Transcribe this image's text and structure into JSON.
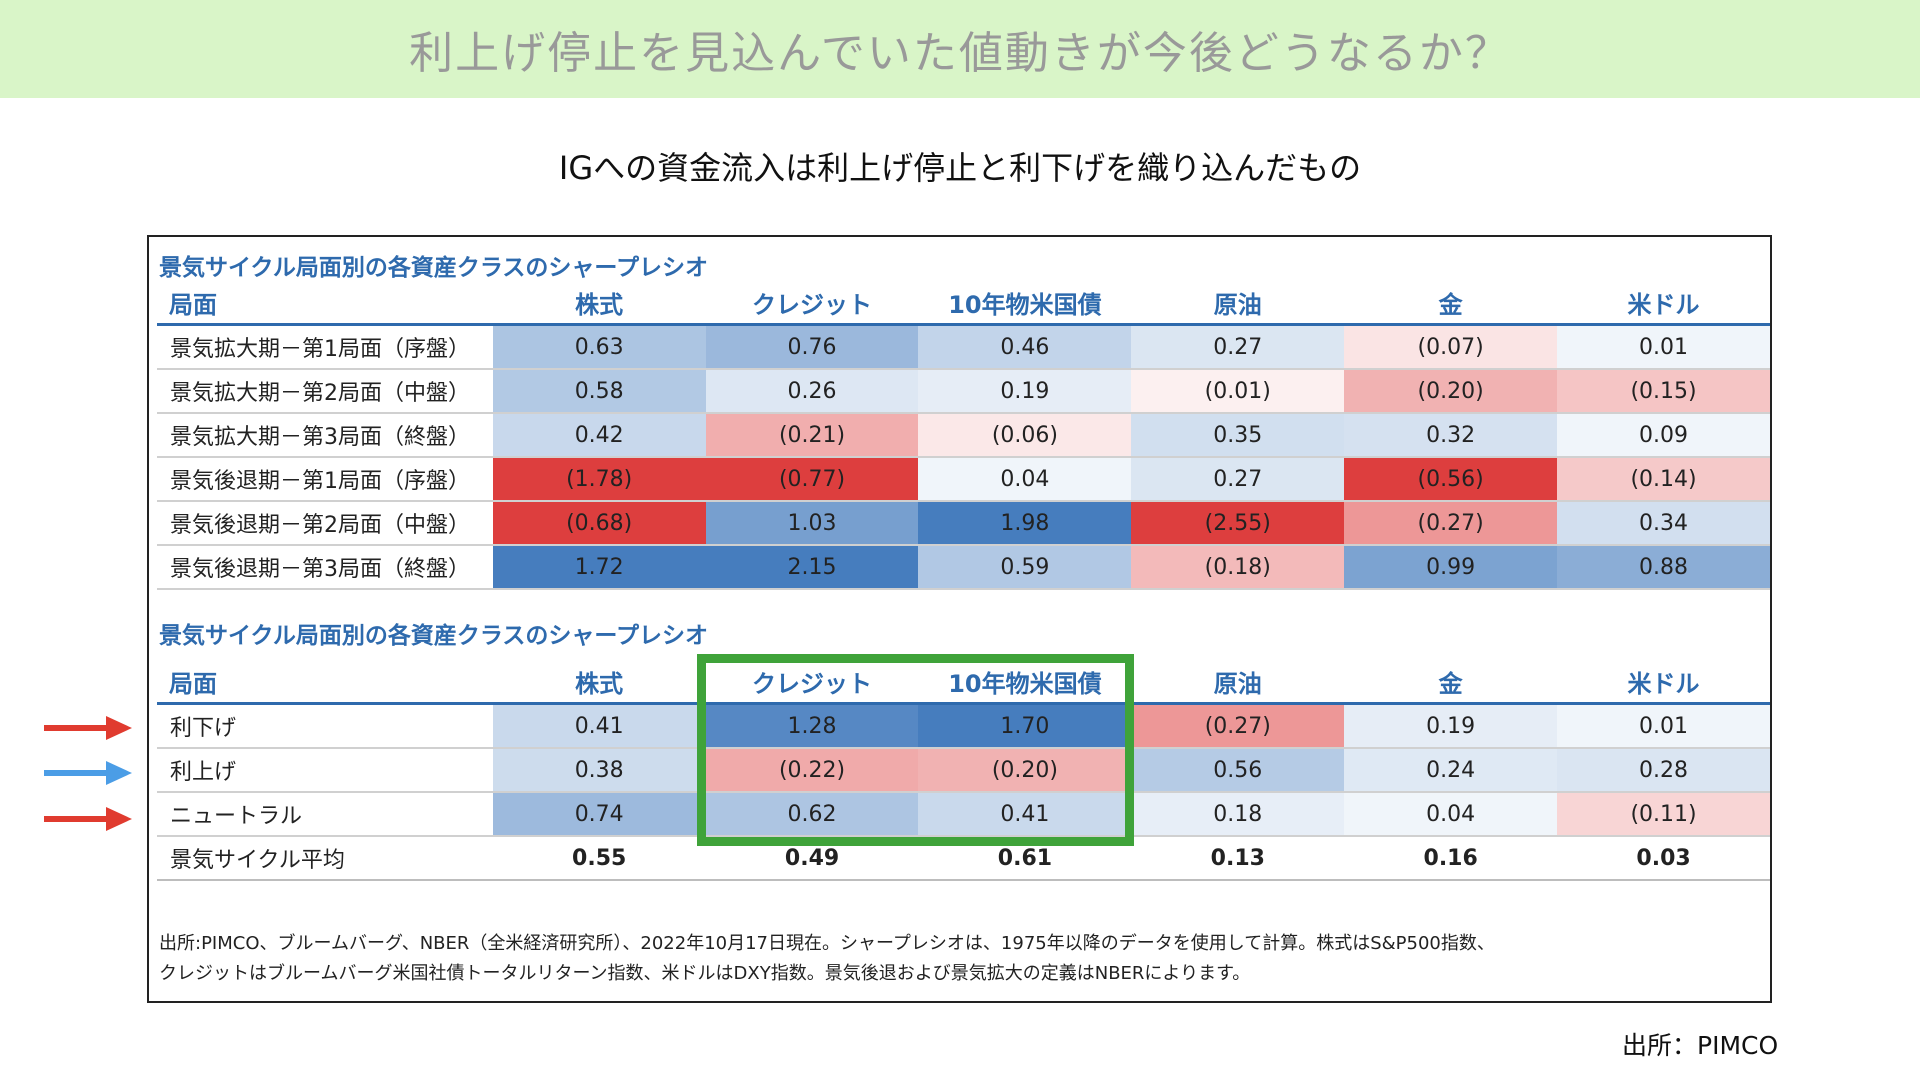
{
  "banner": {
    "title": "利上げ停止を見込んでいた値動きが今後どうなるか？"
  },
  "subtitle": "IGへの資金流入は利上げ停止と利下げを織り込んだもの",
  "source": "出所：PIMCO",
  "colors": {
    "banner_bg": "#d9f5c8",
    "header_blue": "#2e6aad",
    "highlight_green": "#3fa33a",
    "arrow_red": "#e03b2f",
    "arrow_blue": "#4b9de6"
  },
  "chart_data": [
    {
      "type": "table",
      "title": "景気サイクル局面別の各資産クラスのシャープレシオ",
      "columns": [
        "局面",
        "株式",
        "クレジット",
        "10年物米国債",
        "原油",
        "金",
        "米ドル"
      ],
      "rows": [
        {
          "label": "景気拡大期－第1局面（序盤）",
          "values": [
            0.63,
            0.76,
            0.46,
            0.27,
            -0.07,
            0.01
          ],
          "display": [
            "0.63",
            "0.76",
            "0.46",
            "0.27",
            "(0.07)",
            "0.01"
          ]
        },
        {
          "label": "景気拡大期－第2局面（中盤）",
          "values": [
            0.58,
            0.26,
            0.19,
            -0.01,
            -0.2,
            -0.15
          ],
          "display": [
            "0.58",
            "0.26",
            "0.19",
            "(0.01)",
            "(0.20)",
            "(0.15)"
          ]
        },
        {
          "label": "景気拡大期－第3局面（終盤）",
          "values": [
            0.42,
            -0.21,
            -0.06,
            0.35,
            0.32,
            0.09
          ],
          "display": [
            "0.42",
            "(0.21)",
            "(0.06)",
            "0.35",
            "0.32",
            "0.09"
          ]
        },
        {
          "label": "景気後退期－第1局面（序盤）",
          "values": [
            -1.78,
            -0.77,
            0.04,
            0.27,
            -0.56,
            -0.14
          ],
          "display": [
            "(1.78)",
            "(0.77)",
            "0.04",
            "0.27",
            "(0.56)",
            "(0.14)"
          ]
        },
        {
          "label": "景気後退期－第2局面（中盤）",
          "values": [
            -0.68,
            1.03,
            1.98,
            -2.55,
            -0.27,
            0.34
          ],
          "display": [
            "(0.68)",
            "1.03",
            "1.98",
            "(2.55)",
            "(0.27)",
            "0.34"
          ]
        },
        {
          "label": "景気後退期－第3局面（終盤）",
          "values": [
            1.72,
            2.15,
            0.59,
            -0.18,
            0.99,
            0.88
          ],
          "display": [
            "1.72",
            "2.15",
            "0.59",
            "(0.18)",
            "0.99",
            "0.88"
          ]
        }
      ]
    },
    {
      "type": "table",
      "title": "景気サイクル局面別の各資産クラスのシャープレシオ",
      "columns": [
        "局面",
        "株式",
        "クレジット",
        "10年物米国債",
        "原油",
        "金",
        "米ドル"
      ],
      "highlighted_columns": [
        "クレジット",
        "10年物米国債"
      ],
      "rows": [
        {
          "label": "利下げ",
          "values": [
            0.41,
            1.28,
            1.7,
            -0.27,
            0.19,
            0.01
          ],
          "display": [
            "0.41",
            "1.28",
            "1.70",
            "(0.27)",
            "0.19",
            "0.01"
          ],
          "arrow": "red"
        },
        {
          "label": "利上げ",
          "values": [
            0.38,
            -0.22,
            -0.2,
            0.56,
            0.24,
            0.28
          ],
          "display": [
            "0.38",
            "(0.22)",
            "(0.20)",
            "0.56",
            "0.24",
            "0.28"
          ],
          "arrow": "blue"
        },
        {
          "label": "ニュートラル",
          "values": [
            0.74,
            0.62,
            0.41,
            0.18,
            0.04,
            -0.11
          ],
          "display": [
            "0.74",
            "0.62",
            "0.41",
            "0.18",
            "0.04",
            "(0.11)"
          ],
          "arrow": "red"
        }
      ],
      "average": {
        "label": "景気サイクル平均",
        "values": [
          0.55,
          0.49,
          0.61,
          0.13,
          0.16,
          0.03
        ],
        "display": [
          "0.55",
          "0.49",
          "0.61",
          "0.13",
          "0.16",
          "0.03"
        ]
      }
    }
  ],
  "footnote": [
    "出所:PIMCO、ブルームバーグ、NBER（全米経済研究所）、2022年10月17日現在。シャープレシオは、1975年以降のデータを使用して計算。株式はS&P500指数、",
    "クレジットはブルームバーグ米国社債トータルリターン指数、米ドルはDXY指数。景気後退および景気拡大の定義はNBERによります。"
  ]
}
